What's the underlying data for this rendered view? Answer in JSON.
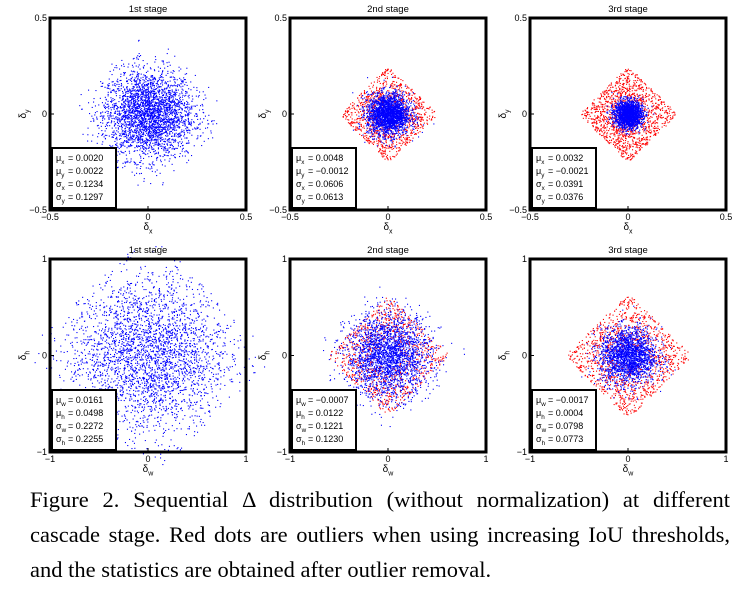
{
  "colors": {
    "inlier": "#0000ff",
    "outlier": "#ff0000",
    "frame": "#000000"
  },
  "caption": {
    "label": "Figure 2.",
    "text": "Sequential Δ distribution (without normalization) at different cascade stage. Red dots are outliers when using increasing IoU thresholds, and the statistics are obtained after outlier removal."
  },
  "chart_data": [
    {
      "type": "scatter",
      "title": "1st stage",
      "xlabel": "δx",
      "ylabel": "δy",
      "xlim": [
        -0.5,
        0.5
      ],
      "ylim": [
        -0.5,
        0.5
      ],
      "xticks": [
        "−0.5",
        "0",
        "0.5"
      ],
      "yticks": [
        "0.5",
        "0",
        "−0.5"
      ],
      "stats": [
        {
          "sym": "μ",
          "sub": "x",
          "value": "0.0020"
        },
        {
          "sym": "μ",
          "sub": "y",
          "value": "0.0022"
        },
        {
          "sym": "σ",
          "sub": "x",
          "value": "0.1234"
        },
        {
          "sym": "σ",
          "sub": "y",
          "value": "0.1297"
        }
      ],
      "inliers": {
        "n": 3000,
        "spread": 0.45,
        "sd": 0.13
      },
      "outliers": {
        "n": 0,
        "spread": 0
      }
    },
    {
      "type": "scatter",
      "title": "2nd stage",
      "xlabel": "δx",
      "ylabel": "δy",
      "xlim": [
        -0.5,
        0.5
      ],
      "ylim": [
        -0.5,
        0.5
      ],
      "xticks": [
        "−0.5",
        "0",
        "0.5"
      ],
      "yticks": [
        "0.5",
        "0",
        "−0.5"
      ],
      "stats": [
        {
          "sym": "μ",
          "sub": "x",
          "value": "0.0048"
        },
        {
          "sym": "μ",
          "sub": "y",
          "value": "−0.0012"
        },
        {
          "sym": "σ",
          "sub": "x",
          "value": "0.0606"
        },
        {
          "sym": "σ",
          "sub": "y",
          "value": "0.0613"
        }
      ],
      "inliers": {
        "n": 2200,
        "spread": 0.3,
        "sd": 0.06
      },
      "outliers": {
        "n": 1000,
        "spread": 0.48
      }
    },
    {
      "type": "scatter",
      "title": "3rd stage",
      "xlabel": "δx",
      "ylabel": "δy",
      "xlim": [
        -0.5,
        0.5
      ],
      "ylim": [
        -0.5,
        0.5
      ],
      "xticks": [
        "−0.5",
        "0",
        "0.5"
      ],
      "yticks": [
        "0.5",
        "0",
        "−0.5"
      ],
      "stats": [
        {
          "sym": "μ",
          "sub": "x",
          "value": "0.0032"
        },
        {
          "sym": "μ",
          "sub": "y",
          "value": "−0.0021"
        },
        {
          "sym": "σ",
          "sub": "x",
          "value": "0.0391"
        },
        {
          "sym": "σ",
          "sub": "y",
          "value": "0.0376"
        }
      ],
      "inliers": {
        "n": 1800,
        "spread": 0.2,
        "sd": 0.04
      },
      "outliers": {
        "n": 1300,
        "spread": 0.48
      }
    },
    {
      "type": "scatter",
      "title": "1st stage",
      "xlabel": "δw",
      "ylabel": "δh",
      "xlim": [
        -1,
        1
      ],
      "ylim": [
        -1,
        1
      ],
      "xticks": [
        "−1",
        "0",
        "1"
      ],
      "yticks": [
        "1",
        "0",
        "−1"
      ],
      "stats": [
        {
          "sym": "μ",
          "sub": "w",
          "value": "0.0161"
        },
        {
          "sym": "μ",
          "sub": "h",
          "value": "0.0498"
        },
        {
          "sym": "σ",
          "sub": "w",
          "value": "0.2272"
        },
        {
          "sym": "σ",
          "sub": "h",
          "value": "0.2255"
        }
      ],
      "inliers": {
        "n": 3000,
        "spread": 0.65,
        "sd": 0.23
      },
      "outliers": {
        "n": 0,
        "spread": 0
      }
    },
    {
      "type": "scatter",
      "title": "2nd stage",
      "xlabel": "δw",
      "ylabel": "δh",
      "xlim": [
        -1,
        1
      ],
      "ylim": [
        -1,
        1
      ],
      "xticks": [
        "−1",
        "0",
        "1"
      ],
      "yticks": [
        "1",
        "0",
        "−1"
      ],
      "stats": [
        {
          "sym": "μ",
          "sub": "w",
          "value": "−0.0007"
        },
        {
          "sym": "μ",
          "sub": "h",
          "value": "0.0122"
        },
        {
          "sym": "σ",
          "sub": "w",
          "value": "0.1221"
        },
        {
          "sym": "σ",
          "sub": "h",
          "value": "0.1230"
        }
      ],
      "inliers": {
        "n": 2400,
        "spread": 0.45,
        "sd": 0.12
      },
      "outliers": {
        "n": 900,
        "spread": 0.6
      }
    },
    {
      "type": "scatter",
      "title": "3rd stage",
      "xlabel": "δw",
      "ylabel": "δh",
      "xlim": [
        -1,
        1
      ],
      "ylim": [
        -1,
        1
      ],
      "xticks": [
        "−1",
        "0",
        "1"
      ],
      "yticks": [
        "1",
        "0",
        "−1"
      ],
      "stats": [
        {
          "sym": "μ",
          "sub": "w",
          "value": "−0.0017"
        },
        {
          "sym": "μ",
          "sub": "h",
          "value": "0.0004"
        },
        {
          "sym": "σ",
          "sub": "w",
          "value": "0.0798"
        },
        {
          "sym": "σ",
          "sub": "h",
          "value": "0.0773"
        }
      ],
      "inliers": {
        "n": 2000,
        "spread": 0.35,
        "sd": 0.08
      },
      "outliers": {
        "n": 1200,
        "spread": 0.62
      }
    }
  ]
}
